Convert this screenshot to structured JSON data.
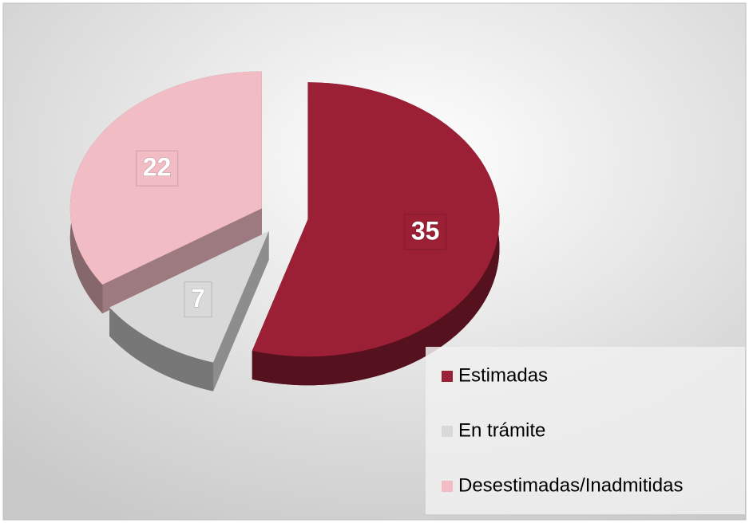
{
  "chart_data": {
    "type": "pie",
    "categories": [
      "Estimadas",
      "En trámite",
      "Desestimadas/Inadmitidas"
    ],
    "values": [
      35,
      7,
      22
    ],
    "colors": [
      "#9b1f35",
      "#d9d9d9",
      "#f2bcc4"
    ],
    "legend": "bottom-right"
  }
}
